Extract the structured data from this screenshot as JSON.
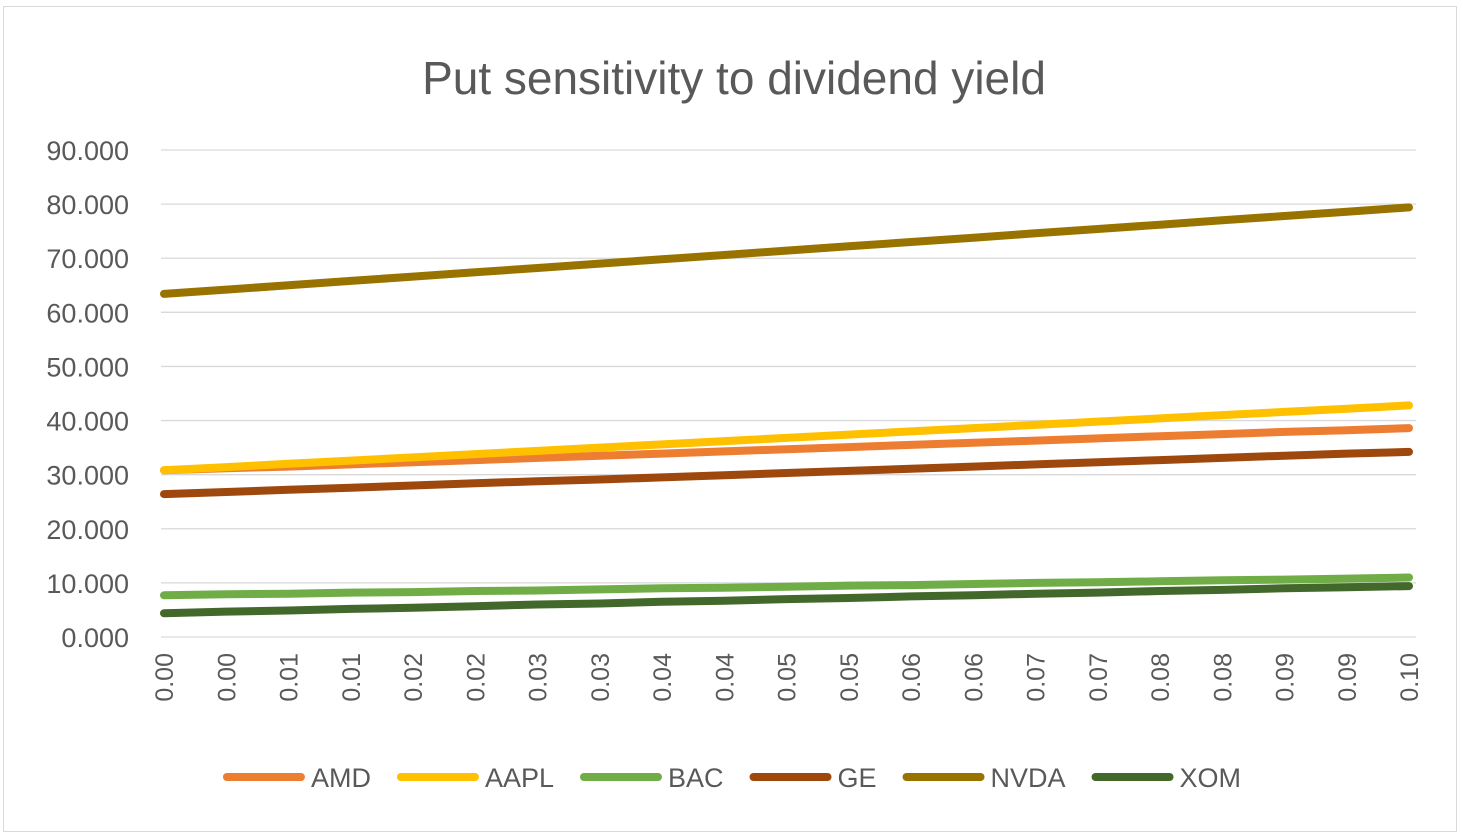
{
  "chart_data": {
    "type": "line",
    "title": "Put sensitivity to dividend yield",
    "xlabel": "",
    "ylabel": "",
    "ylim": [
      0,
      90
    ],
    "yticks": [
      "0.000",
      "10.000",
      "20.000",
      "30.000",
      "40.000",
      "50.000",
      "60.000",
      "70.000",
      "80.000",
      "90.000"
    ],
    "x": [
      "0.00",
      "0.00",
      "0.01",
      "0.01",
      "0.02",
      "0.02",
      "0.03",
      "0.03",
      "0.04",
      "0.04",
      "0.05",
      "0.05",
      "0.06",
      "0.06",
      "0.07",
      "0.07",
      "0.08",
      "0.08",
      "0.09",
      "0.09",
      "0.10"
    ],
    "grid": true,
    "legend": "bottom",
    "series": [
      {
        "name": "AMD",
        "color": "#ED7D31",
        "values": [
          30.8,
          31.2,
          31.5,
          31.9,
          32.3,
          32.7,
          33.1,
          33.5,
          33.9,
          34.3,
          34.7,
          35.1,
          35.5,
          35.9,
          36.3,
          36.7,
          37.1,
          37.5,
          37.9,
          38.2,
          38.6
        ]
      },
      {
        "name": "AAPL",
        "color": "#FFC000",
        "values": [
          30.8,
          31.4,
          32.0,
          32.6,
          33.2,
          33.8,
          34.4,
          35.0,
          35.6,
          36.2,
          36.8,
          37.4,
          38.0,
          38.6,
          39.2,
          39.8,
          40.4,
          41.0,
          41.6,
          42.2,
          42.8
        ]
      },
      {
        "name": "BAC",
        "color": "#70AD47",
        "values": [
          7.7,
          7.9,
          8.0,
          8.2,
          8.3,
          8.5,
          8.6,
          8.8,
          9.0,
          9.1,
          9.3,
          9.5,
          9.6,
          9.8,
          10.0,
          10.1,
          10.3,
          10.5,
          10.6,
          10.8,
          11.0
        ]
      },
      {
        "name": "GE",
        "color": "#9E480E",
        "values": [
          26.4,
          26.8,
          27.2,
          27.6,
          28.0,
          28.4,
          28.8,
          29.1,
          29.5,
          29.9,
          30.3,
          30.7,
          31.1,
          31.5,
          31.9,
          32.3,
          32.7,
          33.1,
          33.5,
          33.9,
          34.2
        ]
      },
      {
        "name": "NVDA",
        "color": "#997300",
        "values": [
          63.4,
          64.2,
          65.0,
          65.8,
          66.6,
          67.4,
          68.2,
          69.0,
          69.8,
          70.6,
          71.4,
          72.2,
          73.0,
          73.8,
          74.6,
          75.4,
          76.2,
          77.0,
          77.8,
          78.6,
          79.4
        ]
      },
      {
        "name": "XOM",
        "color": "#43682B",
        "values": [
          4.4,
          4.7,
          4.9,
          5.2,
          5.4,
          5.7,
          6.0,
          6.2,
          6.5,
          6.7,
          7.0,
          7.2,
          7.5,
          7.7,
          8.0,
          8.2,
          8.5,
          8.7,
          9.0,
          9.2,
          9.4
        ]
      }
    ]
  }
}
